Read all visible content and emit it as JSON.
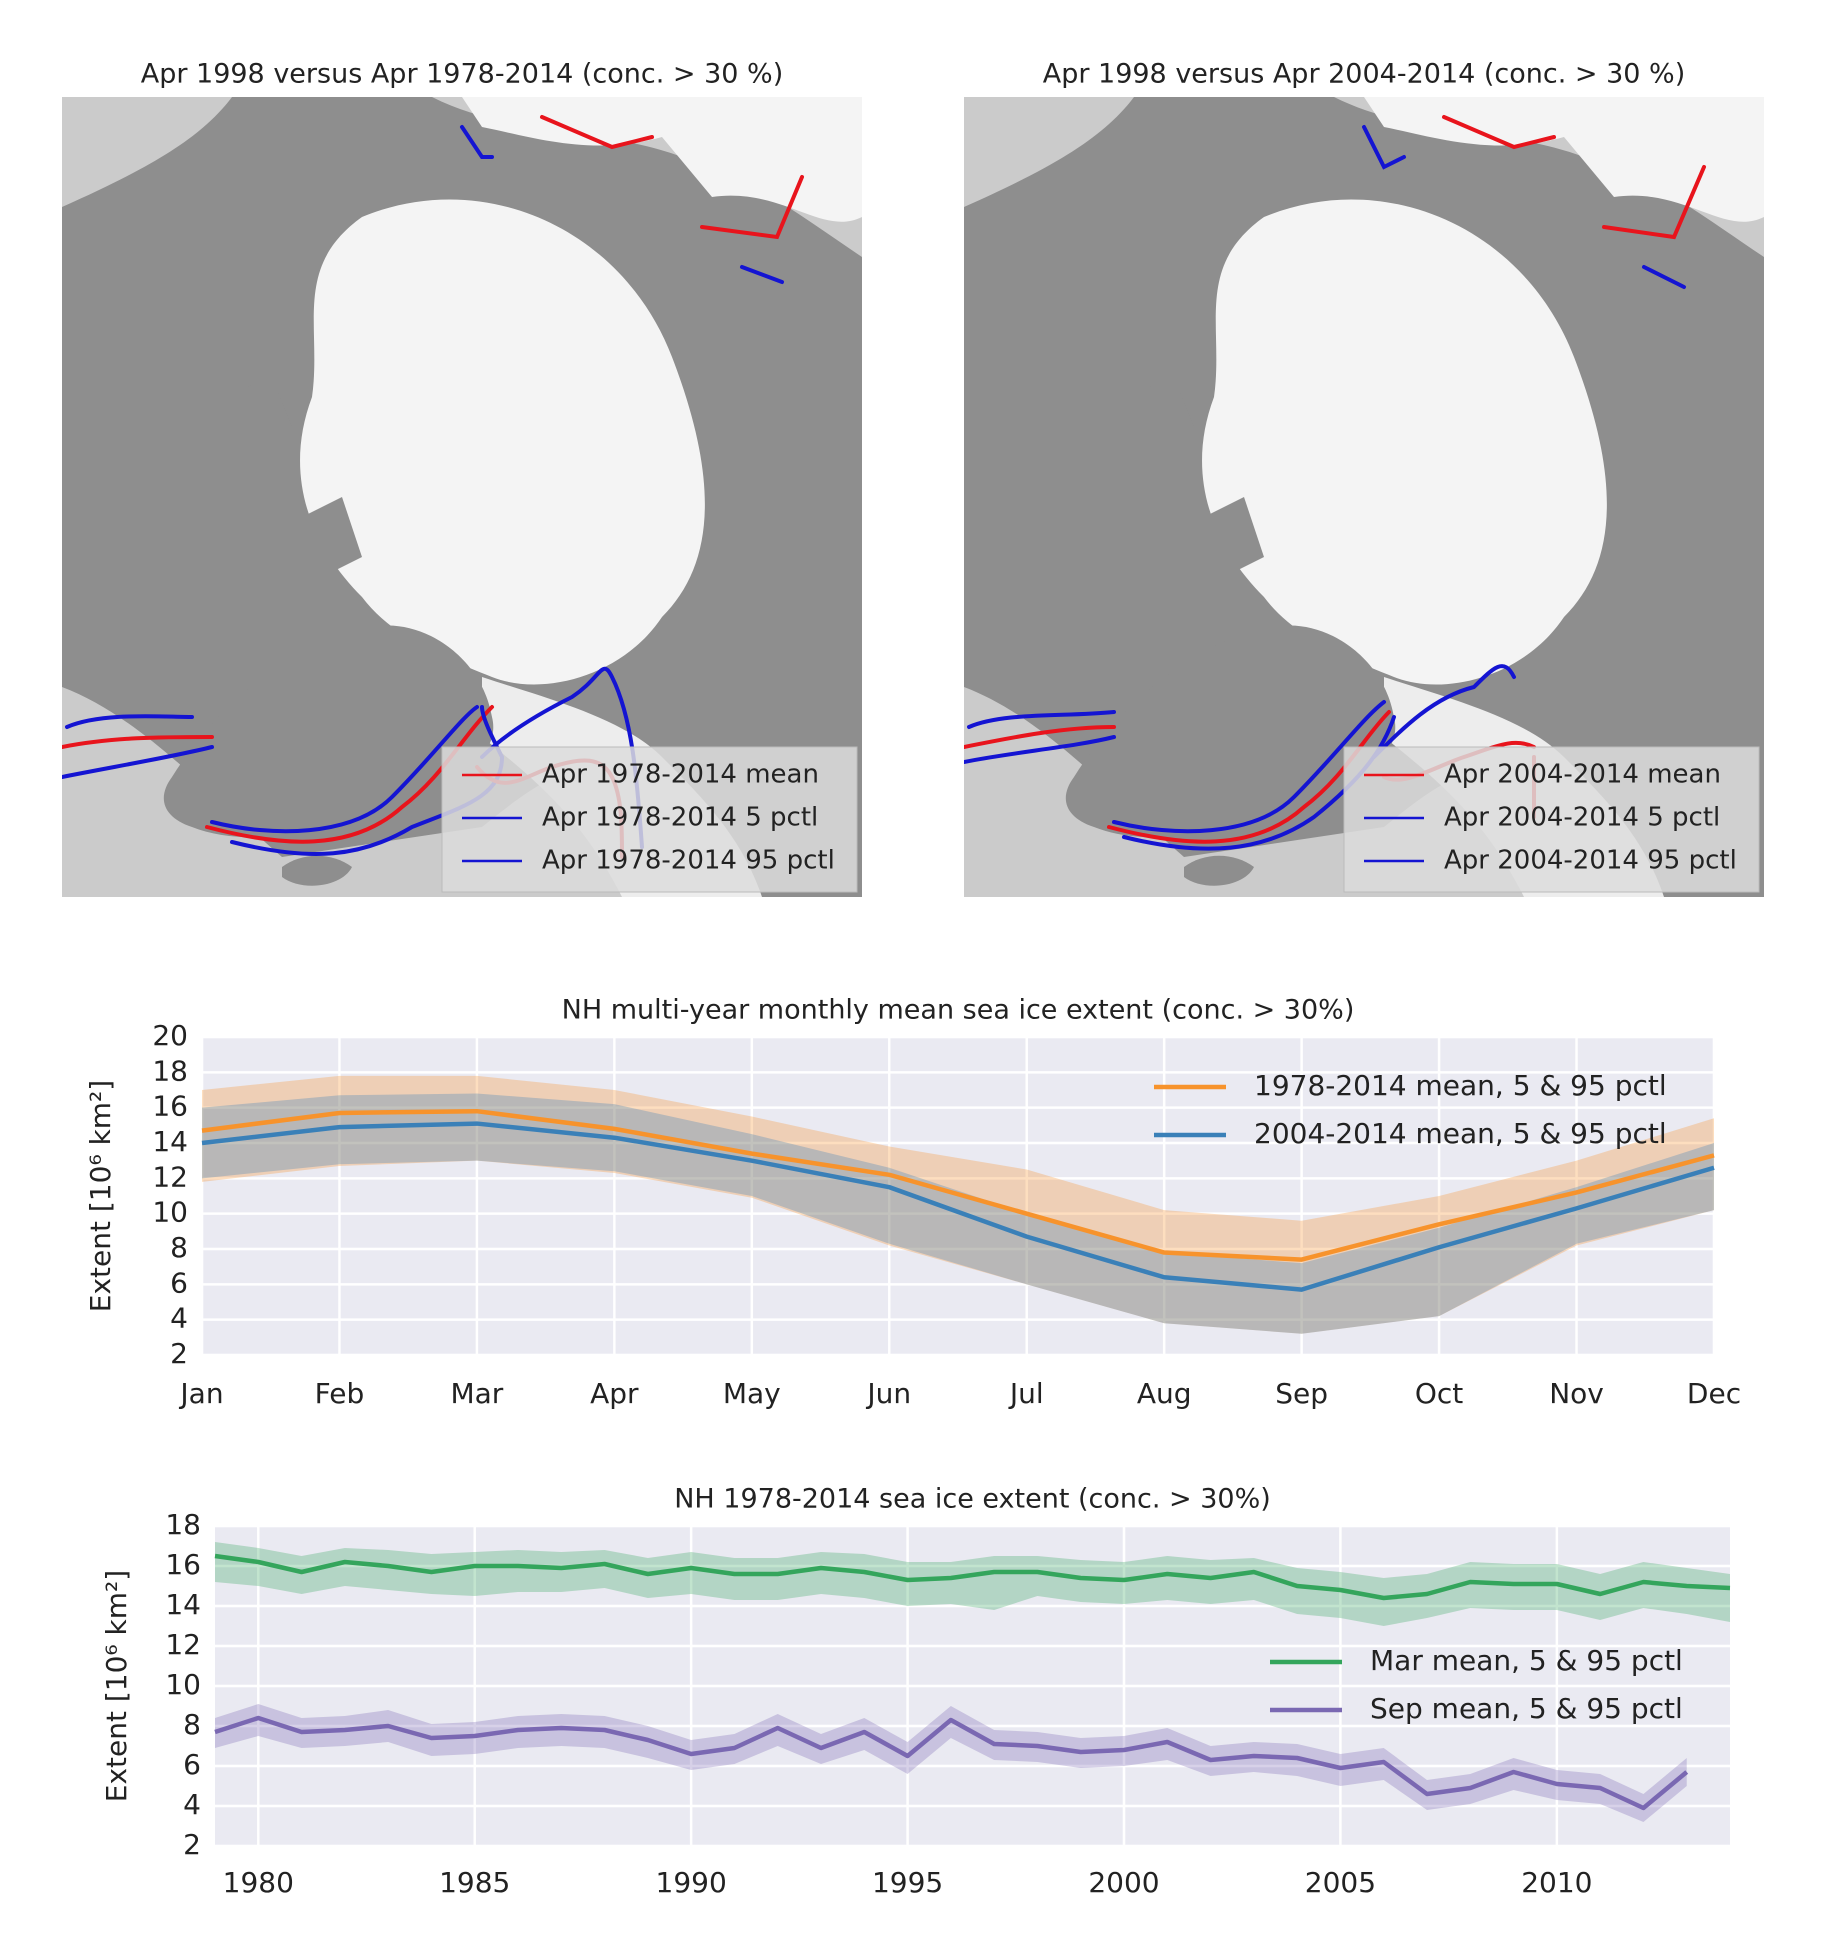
{
  "chart_data": [
    {
      "type": "map",
      "title": "Apr 1998 versus Apr 1978-2014 (conc. > 30 %)",
      "legend": [
        {
          "name": "Apr 1978-2014 mean",
          "color": "#e8141c"
        },
        {
          "name": "Apr 1978-2014 5 pctl",
          "color": "#1414d2"
        },
        {
          "name": "Apr 1978-2014 95 pctl",
          "color": "#1414d2"
        }
      ],
      "legend_position": "lower right"
    },
    {
      "type": "map",
      "title": "Apr 1998 versus Apr 2004-2014 (conc. > 30 %)",
      "legend": [
        {
          "name": "Apr 2004-2014 mean",
          "color": "#e8141c"
        },
        {
          "name": "Apr 2004-2014 5 pctl",
          "color": "#1414d2"
        },
        {
          "name": "Apr 2004-2014 95 pctl",
          "color": "#1414d2"
        }
      ],
      "legend_position": "lower right"
    },
    {
      "type": "line",
      "title": "NH multi-year monthly mean sea ice extent (conc. > 30%)",
      "y_label": "Extent [10⁶  km²]",
      "categories": [
        "Jan",
        "Feb",
        "Mar",
        "Apr",
        "May",
        "Jun",
        "Jul",
        "Aug",
        "Sep",
        "Oct",
        "Nov",
        "Dec"
      ],
      "series": [
        {
          "name": "1978-2014 mean, 5 & 95 pctl",
          "color": "#f7932c",
          "values": [
            14.7,
            15.7,
            15.8,
            14.8,
            13.4,
            12.2,
            10.0,
            7.8,
            7.4,
            9.4,
            11.2,
            13.3
          ],
          "lower": [
            11.8,
            12.7,
            13.0,
            12.3,
            10.9,
            8.2,
            6.0,
            3.8,
            3.2,
            4.2,
            8.2,
            10.2
          ],
          "upper": [
            17.0,
            17.8,
            17.8,
            17.0,
            15.5,
            13.8,
            12.5,
            10.2,
            9.6,
            11.0,
            13.0,
            15.4
          ]
        },
        {
          "name": "2004-2014 mean, 5 & 95 pctl",
          "color": "#3a80b8",
          "values": [
            14.0,
            14.9,
            15.1,
            14.3,
            13.0,
            11.5,
            8.7,
            6.4,
            5.7,
            8.1,
            10.3,
            12.6
          ],
          "lower": [
            12.0,
            12.8,
            13.0,
            12.4,
            11.0,
            8.3,
            6.0,
            3.8,
            3.2,
            4.2,
            8.3,
            10.2
          ],
          "upper": [
            16.0,
            16.7,
            16.8,
            16.2,
            14.5,
            12.6,
            10.0,
            7.8,
            7.2,
            9.2,
            11.5,
            14.0
          ]
        }
      ],
      "ylim": [
        2,
        20
      ],
      "yticks": [
        2,
        4,
        6,
        8,
        10,
        12,
        14,
        16,
        18,
        20
      ],
      "grid": true,
      "legend_position": "upper right"
    },
    {
      "type": "line",
      "title": "NH 1978-2014 sea ice extent (conc. > 30%)",
      "y_label": "Extent [10⁶  km²]",
      "x": [
        1979,
        1980,
        1981,
        1982,
        1983,
        1984,
        1985,
        1986,
        1987,
        1988,
        1989,
        1990,
        1991,
        1992,
        1993,
        1994,
        1995,
        1996,
        1997,
        1998,
        1999,
        2000,
        2001,
        2002,
        2003,
        2004,
        2005,
        2006,
        2007,
        2008,
        2009,
        2010,
        2011,
        2012,
        2013,
        2014
      ],
      "series": [
        {
          "name": "Mar mean, 5 & 95 pctl",
          "color": "#34a55c",
          "values": [
            16.5,
            16.2,
            15.7,
            16.2,
            16.0,
            15.7,
            16.0,
            16.0,
            15.9,
            16.1,
            15.6,
            15.9,
            15.6,
            15.6,
            15.9,
            15.7,
            15.3,
            15.4,
            15.7,
            15.7,
            15.4,
            15.3,
            15.6,
            15.4,
            15.7,
            15.0,
            14.8,
            14.4,
            14.6,
            15.2,
            15.1,
            15.1,
            14.6,
            15.2,
            15.0,
            14.9
          ],
          "lower": [
            15.2,
            15.0,
            14.6,
            15.0,
            14.8,
            14.6,
            14.5,
            14.7,
            14.7,
            14.9,
            14.4,
            14.6,
            14.3,
            14.3,
            14.6,
            14.4,
            14.0,
            14.1,
            13.8,
            14.5,
            14.2,
            14.1,
            14.3,
            14.1,
            14.3,
            13.6,
            13.4,
            13.0,
            13.4,
            13.9,
            13.8,
            13.8,
            13.3,
            13.9,
            13.6,
            13.2
          ],
          "upper": [
            17.2,
            16.9,
            16.5,
            16.9,
            16.8,
            16.6,
            16.7,
            16.8,
            16.7,
            16.8,
            16.4,
            16.7,
            16.4,
            16.4,
            16.7,
            16.6,
            16.2,
            16.2,
            16.5,
            16.5,
            16.3,
            16.2,
            16.5,
            16.3,
            16.4,
            15.9,
            15.7,
            15.4,
            15.6,
            16.2,
            16.1,
            16.1,
            15.6,
            16.2,
            15.9,
            15.6
          ]
        },
        {
          "name": "Sep mean, 5 & 95 pctl",
          "color": "#7a68b2",
          "values": [
            7.7,
            8.4,
            7.7,
            7.8,
            8.0,
            7.4,
            7.5,
            7.8,
            7.9,
            7.8,
            7.3,
            6.6,
            6.9,
            7.9,
            6.9,
            7.7,
            6.5,
            8.3,
            7.1,
            7.0,
            6.7,
            6.8,
            7.2,
            6.3,
            6.5,
            6.4,
            5.9,
            6.2,
            4.6,
            4.9,
            5.7,
            5.1,
            4.9,
            3.9,
            5.7,
            null
          ],
          "lower": [
            6.9,
            7.5,
            6.9,
            7.0,
            7.2,
            6.5,
            6.6,
            6.9,
            7.0,
            6.9,
            6.4,
            5.8,
            6.1,
            7.0,
            6.1,
            6.8,
            5.6,
            7.4,
            6.3,
            6.2,
            5.9,
            6.0,
            6.3,
            5.5,
            5.7,
            5.5,
            5.0,
            5.3,
            3.8,
            4.1,
            4.8,
            4.3,
            4.1,
            3.2,
            5.0,
            null
          ],
          "upper": [
            8.4,
            9.1,
            8.4,
            8.5,
            8.8,
            8.1,
            8.2,
            8.5,
            8.6,
            8.5,
            8.0,
            7.3,
            7.6,
            8.6,
            7.6,
            8.4,
            7.2,
            9.0,
            7.8,
            7.7,
            7.4,
            7.5,
            7.9,
            7.0,
            7.2,
            7.1,
            6.6,
            6.9,
            5.3,
            5.6,
            6.4,
            5.8,
            5.6,
            4.6,
            6.4,
            null
          ]
        }
      ],
      "xlim": [
        1979,
        2014
      ],
      "xticks": [
        1980,
        1985,
        1990,
        1995,
        2000,
        2005,
        2010
      ],
      "ylim": [
        2,
        18
      ],
      "yticks": [
        2,
        4,
        6,
        8,
        10,
        12,
        14,
        16,
        18
      ],
      "grid": true,
      "legend_position": "center right"
    }
  ]
}
